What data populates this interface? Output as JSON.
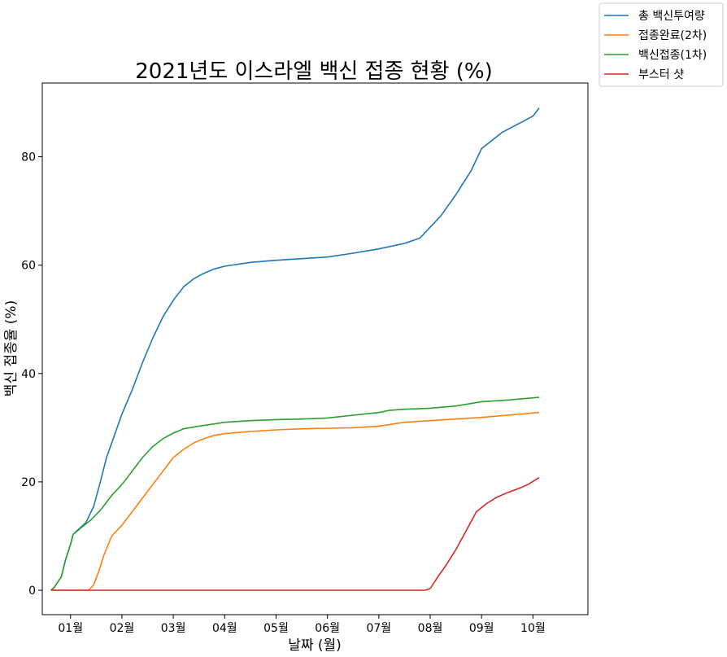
{
  "chart_data": {
    "type": "line",
    "title": "2021년도 이스라엘 백신 접종 현황 (%)",
    "xlabel": "날짜 (월)",
    "ylabel": "백신 접종율 (%)",
    "x_unit": "2021-month",
    "xlim": [
      0.45,
      11.07
    ],
    "ylim": [
      -4.5,
      93.6
    ],
    "xticks": [
      {
        "value": 1,
        "label": "01월"
      },
      {
        "value": 2,
        "label": "02월"
      },
      {
        "value": 3,
        "label": "03월"
      },
      {
        "value": 4,
        "label": "04월"
      },
      {
        "value": 5,
        "label": "05월"
      },
      {
        "value": 6,
        "label": "06월"
      },
      {
        "value": 7,
        "label": "07월"
      },
      {
        "value": 8,
        "label": "08월"
      },
      {
        "value": 9,
        "label": "09월"
      },
      {
        "value": 10,
        "label": "10월"
      }
    ],
    "yticks": [
      0,
      20,
      40,
      60,
      80
    ],
    "grid": false,
    "legend_position": "top-right outside",
    "series": [
      {
        "name": "총 백신투여량",
        "color": "#1f77b4",
        "points": [
          [
            0.62,
            0
          ],
          [
            0.68,
            0.5
          ],
          [
            0.75,
            1.5
          ],
          [
            0.82,
            2.5
          ],
          [
            0.9,
            5.5
          ],
          [
            1.0,
            8.5
          ],
          [
            1.05,
            10.3
          ],
          [
            1.15,
            11.2
          ],
          [
            1.3,
            12.5
          ],
          [
            1.45,
            15.5
          ],
          [
            1.58,
            20
          ],
          [
            1.7,
            24.5
          ],
          [
            1.85,
            28.5
          ],
          [
            2.0,
            32.5
          ],
          [
            2.2,
            37
          ],
          [
            2.4,
            42
          ],
          [
            2.6,
            46.5
          ],
          [
            2.8,
            50.5
          ],
          [
            3.0,
            53.5
          ],
          [
            3.2,
            56
          ],
          [
            3.4,
            57.5
          ],
          [
            3.6,
            58.5
          ],
          [
            3.8,
            59.3
          ],
          [
            4.0,
            59.8
          ],
          [
            4.5,
            60.5
          ],
          [
            5.0,
            60.9
          ],
          [
            5.5,
            61.2
          ],
          [
            6.0,
            61.5
          ],
          [
            6.5,
            62.2
          ],
          [
            7.0,
            63
          ],
          [
            7.5,
            64
          ],
          [
            7.8,
            65
          ],
          [
            8.0,
            67
          ],
          [
            8.2,
            69
          ],
          [
            8.5,
            73
          ],
          [
            8.8,
            77.5
          ],
          [
            9.0,
            81.5
          ],
          [
            9.2,
            83
          ],
          [
            9.4,
            84.5
          ],
          [
            9.6,
            85.5
          ],
          [
            9.8,
            86.5
          ],
          [
            10.0,
            87.5
          ],
          [
            10.12,
            89
          ]
        ]
      },
      {
        "name": "접종완료(2차)",
        "color": "#ff7f0e",
        "points": [
          [
            0.62,
            0
          ],
          [
            1.35,
            0
          ],
          [
            1.45,
            1
          ],
          [
            1.55,
            3.5
          ],
          [
            1.65,
            6.5
          ],
          [
            1.8,
            10
          ],
          [
            2.0,
            12
          ],
          [
            2.2,
            14.5
          ],
          [
            2.4,
            17
          ],
          [
            2.6,
            19.5
          ],
          [
            2.8,
            22
          ],
          [
            3.0,
            24.5
          ],
          [
            3.2,
            26
          ],
          [
            3.4,
            27.2
          ],
          [
            3.6,
            28
          ],
          [
            3.8,
            28.6
          ],
          [
            4.0,
            28.9
          ],
          [
            4.5,
            29.3
          ],
          [
            5.0,
            29.6
          ],
          [
            5.5,
            29.8
          ],
          [
            6.0,
            29.9
          ],
          [
            6.5,
            30
          ],
          [
            7.0,
            30.3
          ],
          [
            7.5,
            31
          ],
          [
            8.0,
            31.3
          ],
          [
            8.5,
            31.6
          ],
          [
            9.0,
            31.9
          ],
          [
            9.5,
            32.3
          ],
          [
            10.12,
            32.8
          ]
        ]
      },
      {
        "name": "백신접종(1차)",
        "color": "#2ca02c",
        "points": [
          [
            0.62,
            0
          ],
          [
            0.68,
            0.5
          ],
          [
            0.75,
            1.5
          ],
          [
            0.82,
            2.5
          ],
          [
            0.9,
            5.5
          ],
          [
            1.0,
            8.5
          ],
          [
            1.05,
            10.3
          ],
          [
            1.2,
            11.5
          ],
          [
            1.4,
            13
          ],
          [
            1.6,
            15
          ],
          [
            1.8,
            17.5
          ],
          [
            2.0,
            19.5
          ],
          [
            2.2,
            22
          ],
          [
            2.4,
            24.5
          ],
          [
            2.6,
            26.5
          ],
          [
            2.8,
            28
          ],
          [
            3.0,
            29
          ],
          [
            3.2,
            29.8
          ],
          [
            3.5,
            30.3
          ],
          [
            3.8,
            30.7
          ],
          [
            4.0,
            31
          ],
          [
            4.5,
            31.3
          ],
          [
            5.0,
            31.5
          ],
          [
            5.5,
            31.6
          ],
          [
            6.0,
            31.8
          ],
          [
            6.5,
            32.3
          ],
          [
            7.0,
            32.8
          ],
          [
            7.2,
            33.2
          ],
          [
            7.5,
            33.4
          ],
          [
            8.0,
            33.6
          ],
          [
            8.5,
            34
          ],
          [
            9.0,
            34.8
          ],
          [
            9.5,
            35.1
          ],
          [
            10.12,
            35.6
          ]
        ]
      },
      {
        "name": "부스터 샷",
        "color": "#d62728",
        "points": [
          [
            0.62,
            0
          ],
          [
            7.9,
            0
          ],
          [
            8.0,
            0.3
          ],
          [
            8.15,
            2.5
          ],
          [
            8.3,
            4.5
          ],
          [
            8.5,
            7.5
          ],
          [
            8.7,
            11
          ],
          [
            8.9,
            14.5
          ],
          [
            9.1,
            16
          ],
          [
            9.3,
            17.2
          ],
          [
            9.5,
            18
          ],
          [
            9.7,
            18.7
          ],
          [
            9.9,
            19.5
          ],
          [
            10.12,
            20.8
          ]
        ]
      }
    ]
  }
}
